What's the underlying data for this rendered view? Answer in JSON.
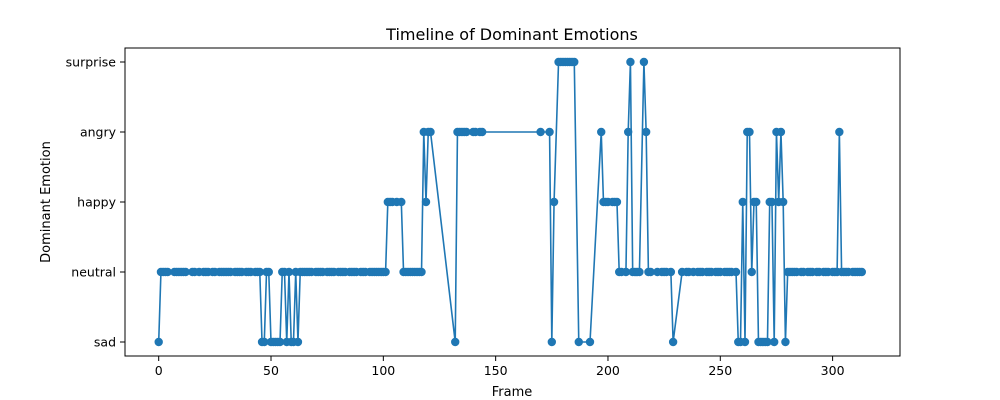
{
  "chart_data": {
    "type": "line",
    "title": "Timeline of Dominant Emotions",
    "xlabel": "Frame",
    "ylabel": "Dominant Emotion",
    "xlim": [
      -15,
      330
    ],
    "x_ticks": [
      0,
      50,
      100,
      150,
      200,
      250,
      300
    ],
    "categories_y": [
      "sad",
      "neutral",
      "happy",
      "angry",
      "surprise"
    ],
    "grid": false,
    "legend": "none",
    "color": "#1f77b4",
    "markers": true,
    "series": [
      {
        "points": [
          [
            0,
            "sad"
          ],
          [
            1,
            "neutral"
          ],
          [
            2,
            "neutral"
          ],
          [
            3,
            "neutral"
          ],
          [
            4,
            "neutral"
          ],
          [
            7,
            "neutral"
          ],
          [
            8,
            "neutral"
          ],
          [
            9,
            "neutral"
          ],
          [
            10,
            "neutral"
          ],
          [
            11,
            "neutral"
          ],
          [
            12,
            "neutral"
          ],
          [
            15,
            "neutral"
          ],
          [
            16,
            "neutral"
          ],
          [
            18,
            "neutral"
          ],
          [
            20,
            "neutral"
          ],
          [
            21,
            "neutral"
          ],
          [
            22,
            "neutral"
          ],
          [
            24,
            "neutral"
          ],
          [
            25,
            "neutral"
          ],
          [
            27,
            "neutral"
          ],
          [
            28,
            "neutral"
          ],
          [
            29,
            "neutral"
          ],
          [
            30,
            "neutral"
          ],
          [
            31,
            "neutral"
          ],
          [
            32,
            "neutral"
          ],
          [
            34,
            "neutral"
          ],
          [
            35,
            "neutral"
          ],
          [
            36,
            "neutral"
          ],
          [
            37,
            "neutral"
          ],
          [
            39,
            "neutral"
          ],
          [
            40,
            "neutral"
          ],
          [
            41,
            "neutral"
          ],
          [
            43,
            "neutral"
          ],
          [
            44,
            "neutral"
          ],
          [
            45,
            "neutral"
          ],
          [
            46,
            "sad"
          ],
          [
            47,
            "sad"
          ],
          [
            48,
            "neutral"
          ],
          [
            49,
            "neutral"
          ],
          [
            50,
            "sad"
          ],
          [
            51,
            "sad"
          ],
          [
            52,
            "sad"
          ],
          [
            53,
            "sad"
          ],
          [
            54,
            "sad"
          ],
          [
            55,
            "neutral"
          ],
          [
            56,
            "neutral"
          ],
          [
            57,
            "sad"
          ],
          [
            58,
            "neutral"
          ],
          [
            59,
            "sad"
          ],
          [
            60,
            "sad"
          ],
          [
            61,
            "neutral"
          ],
          [
            62,
            "sad"
          ],
          [
            63,
            "neutral"
          ],
          [
            64,
            "neutral"
          ],
          [
            65,
            "neutral"
          ],
          [
            66,
            "neutral"
          ],
          [
            67,
            "neutral"
          ],
          [
            68,
            "neutral"
          ],
          [
            70,
            "neutral"
          ],
          [
            71,
            "neutral"
          ],
          [
            72,
            "neutral"
          ],
          [
            73,
            "neutral"
          ],
          [
            75,
            "neutral"
          ],
          [
            76,
            "neutral"
          ],
          [
            77,
            "neutral"
          ],
          [
            78,
            "neutral"
          ],
          [
            80,
            "neutral"
          ],
          [
            81,
            "neutral"
          ],
          [
            82,
            "neutral"
          ],
          [
            83,
            "neutral"
          ],
          [
            85,
            "neutral"
          ],
          [
            86,
            "neutral"
          ],
          [
            87,
            "neutral"
          ],
          [
            88,
            "neutral"
          ],
          [
            90,
            "neutral"
          ],
          [
            91,
            "neutral"
          ],
          [
            92,
            "neutral"
          ],
          [
            94,
            "neutral"
          ],
          [
            95,
            "neutral"
          ],
          [
            96,
            "neutral"
          ],
          [
            97,
            "neutral"
          ],
          [
            98,
            "neutral"
          ],
          [
            99,
            "neutral"
          ],
          [
            100,
            "neutral"
          ],
          [
            101,
            "neutral"
          ],
          [
            102,
            "happy"
          ],
          [
            103,
            "happy"
          ],
          [
            104,
            "happy"
          ],
          [
            106,
            "happy"
          ],
          [
            108,
            "happy"
          ],
          [
            109,
            "neutral"
          ],
          [
            110,
            "neutral"
          ],
          [
            111,
            "neutral"
          ],
          [
            112,
            "neutral"
          ],
          [
            113,
            "neutral"
          ],
          [
            114,
            "neutral"
          ],
          [
            115,
            "neutral"
          ],
          [
            116,
            "neutral"
          ],
          [
            117,
            "neutral"
          ],
          [
            118,
            "angry"
          ],
          [
            119,
            "happy"
          ],
          [
            120,
            "angry"
          ],
          [
            121,
            "angry"
          ],
          [
            132,
            "sad"
          ],
          [
            133,
            "angry"
          ],
          [
            134,
            "angry"
          ],
          [
            135,
            "angry"
          ],
          [
            136,
            "angry"
          ],
          [
            137,
            "angry"
          ],
          [
            140,
            "angry"
          ],
          [
            141,
            "angry"
          ],
          [
            143,
            "angry"
          ],
          [
            144,
            "angry"
          ],
          [
            170,
            "angry"
          ],
          [
            174,
            "angry"
          ],
          [
            175,
            "sad"
          ],
          [
            176,
            "happy"
          ],
          [
            178,
            "surprise"
          ],
          [
            179,
            "surprise"
          ],
          [
            180,
            "surprise"
          ],
          [
            181,
            "surprise"
          ],
          [
            182,
            "surprise"
          ],
          [
            183,
            "surprise"
          ],
          [
            184,
            "surprise"
          ],
          [
            185,
            "surprise"
          ],
          [
            187,
            "sad"
          ],
          [
            192,
            "sad"
          ],
          [
            197,
            "angry"
          ],
          [
            198,
            "happy"
          ],
          [
            199,
            "happy"
          ],
          [
            200,
            "happy"
          ],
          [
            202,
            "happy"
          ],
          [
            203,
            "happy"
          ],
          [
            204,
            "happy"
          ],
          [
            205,
            "neutral"
          ],
          [
            206,
            "neutral"
          ],
          [
            208,
            "neutral"
          ],
          [
            209,
            "angry"
          ],
          [
            210,
            "surprise"
          ],
          [
            211,
            "neutral"
          ],
          [
            212,
            "neutral"
          ],
          [
            213,
            "neutral"
          ],
          [
            214,
            "neutral"
          ],
          [
            216,
            "surprise"
          ],
          [
            217,
            "angry"
          ],
          [
            218,
            "neutral"
          ],
          [
            219,
            "neutral"
          ],
          [
            222,
            "neutral"
          ],
          [
            224,
            "neutral"
          ],
          [
            225,
            "neutral"
          ],
          [
            226,
            "neutral"
          ],
          [
            228,
            "neutral"
          ],
          [
            229,
            "sad"
          ],
          [
            233,
            "neutral"
          ],
          [
            235,
            "neutral"
          ],
          [
            236,
            "neutral"
          ],
          [
            238,
            "neutral"
          ],
          [
            240,
            "neutral"
          ],
          [
            241,
            "neutral"
          ],
          [
            242,
            "neutral"
          ],
          [
            244,
            "neutral"
          ],
          [
            245,
            "neutral"
          ],
          [
            246,
            "neutral"
          ],
          [
            248,
            "neutral"
          ],
          [
            249,
            "neutral"
          ],
          [
            250,
            "neutral"
          ],
          [
            252,
            "neutral"
          ],
          [
            253,
            "neutral"
          ],
          [
            254,
            "neutral"
          ],
          [
            255,
            "neutral"
          ],
          [
            257,
            "neutral"
          ],
          [
            258,
            "sad"
          ],
          [
            259,
            "sad"
          ],
          [
            260,
            "happy"
          ],
          [
            261,
            "sad"
          ],
          [
            262,
            "angry"
          ],
          [
            263,
            "angry"
          ],
          [
            264,
            "neutral"
          ],
          [
            265,
            "happy"
          ],
          [
            266,
            "happy"
          ],
          [
            267,
            "sad"
          ],
          [
            268,
            "sad"
          ],
          [
            269,
            "sad"
          ],
          [
            270,
            "sad"
          ],
          [
            271,
            "sad"
          ],
          [
            272,
            "happy"
          ],
          [
            273,
            "happy"
          ],
          [
            274,
            "sad"
          ],
          [
            275,
            "angry"
          ],
          [
            276,
            "happy"
          ],
          [
            277,
            "angry"
          ],
          [
            278,
            "happy"
          ],
          [
            279,
            "sad"
          ],
          [
            280,
            "neutral"
          ],
          [
            281,
            "neutral"
          ],
          [
            282,
            "neutral"
          ],
          [
            283,
            "neutral"
          ],
          [
            284,
            "neutral"
          ],
          [
            286,
            "neutral"
          ],
          [
            287,
            "neutral"
          ],
          [
            289,
            "neutral"
          ],
          [
            290,
            "neutral"
          ],
          [
            291,
            "neutral"
          ],
          [
            293,
            "neutral"
          ],
          [
            294,
            "neutral"
          ],
          [
            296,
            "neutral"
          ],
          [
            297,
            "neutral"
          ],
          [
            298,
            "neutral"
          ],
          [
            300,
            "neutral"
          ],
          [
            301,
            "neutral"
          ],
          [
            302,
            "neutral"
          ],
          [
            303,
            "angry"
          ],
          [
            304,
            "neutral"
          ],
          [
            305,
            "neutral"
          ],
          [
            306,
            "neutral"
          ],
          [
            307,
            "neutral"
          ],
          [
            309,
            "neutral"
          ],
          [
            310,
            "neutral"
          ],
          [
            311,
            "neutral"
          ],
          [
            312,
            "neutral"
          ],
          [
            313,
            "neutral"
          ]
        ]
      }
    ]
  }
}
